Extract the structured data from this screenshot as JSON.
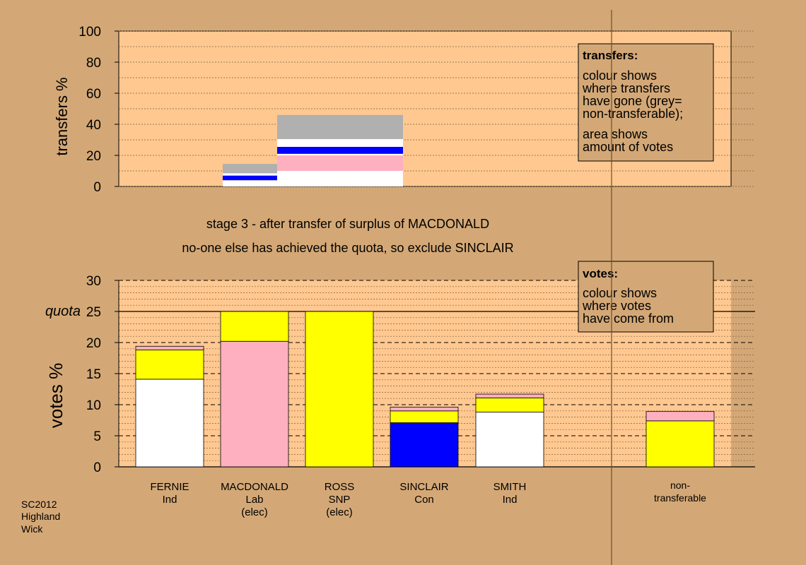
{
  "chart_data": [
    {
      "type": "bar",
      "panel": "transfers",
      "ylabel": "transfers %",
      "ylim": [
        0,
        100
      ],
      "yticks": [
        0,
        20,
        40,
        60,
        80,
        100
      ],
      "bars": [
        {
          "position": "MACDONALD",
          "segments": [
            {
              "color": "#ffffff",
              "value": 4
            },
            {
              "color": "#0000ff",
              "value": 3
            },
            {
              "color": "#ffffff",
              "value": 1.5
            },
            {
              "color": "#b0b0b0",
              "value": 6
            }
          ]
        },
        {
          "position": "ROSS",
          "segments": [
            {
              "color": "#ffffff",
              "value": 10
            },
            {
              "color": "#ffb0c0",
              "value": 10
            },
            {
              "color": "#ffffff",
              "value": 1
            },
            {
              "color": "#0000ff",
              "value": 4.5
            },
            {
              "color": "#ffffff",
              "value": 5
            },
            {
              "color": "#b0b0b0",
              "value": 15.5
            }
          ]
        }
      ],
      "legend": {
        "placement": "top-right",
        "title": "transfers:",
        "lines1": [
          "colour shows",
          "where transfers",
          "have gone (grey=",
          "non-transferable);"
        ],
        "lines2": [
          "area shows",
          "amount of votes"
        ]
      }
    },
    {
      "type": "bar",
      "panel": "votes",
      "ylabel": "votes %",
      "ylim": [
        0,
        30
      ],
      "yticks": [
        0,
        5,
        10,
        15,
        20,
        25,
        30
      ],
      "quota": 25,
      "quota_label": "quota",
      "categories": [
        {
          "name": "FERNIE",
          "party": "Ind",
          "status": ""
        },
        {
          "name": "MACDONALD",
          "party": "Lab",
          "status": "(elec)"
        },
        {
          "name": "ROSS",
          "party": "SNP",
          "status": "(elec)"
        },
        {
          "name": "SINCLAIR",
          "party": "Con",
          "status": ""
        },
        {
          "name": "SMITH",
          "party": "Ind",
          "status": ""
        },
        {
          "name": "non-",
          "party": "transferable",
          "status": ""
        }
      ],
      "bars": [
        {
          "segments": [
            {
              "color": "#ffffff",
              "value": 14.1
            },
            {
              "color": "#ffff00",
              "value": 4.7
            },
            {
              "color": "#ffb0c0",
              "value": 0.6
            }
          ]
        },
        {
          "segments": [
            {
              "color": "#ffb0c0",
              "value": 20.2
            },
            {
              "color": "#ffff00",
              "value": 4.8
            }
          ]
        },
        {
          "segments": [
            {
              "color": "#ffff00",
              "value": 25
            }
          ]
        },
        {
          "segments": [
            {
              "color": "#0000ff",
              "value": 7.1
            },
            {
              "color": "#ffff00",
              "value": 1.9
            },
            {
              "color": "#ffb0c0",
              "value": 0.6
            }
          ]
        },
        {
          "segments": [
            {
              "color": "#ffffff",
              "value": 8.8
            },
            {
              "color": "#ffff00",
              "value": 2.3
            },
            {
              "color": "#ffb0c0",
              "value": 0.6
            }
          ]
        },
        {
          "segments": [
            {
              "color": "#ffff00",
              "value": 7.4
            },
            {
              "color": "#ffb0c0",
              "value": 1.5
            }
          ]
        }
      ],
      "legend": {
        "placement": "top-right",
        "title": "votes:",
        "lines": [
          "colour shows",
          "where votes",
          "have come from"
        ]
      }
    }
  ],
  "stage_text": {
    "line1": "stage 3 - after transfer of surplus of MACDONALD",
    "line2": "no-one else has achieved the quota, so exclude SINCLAIR"
  },
  "footer": {
    "lines": [
      "SC2012",
      "Highland",
      "Wick"
    ]
  },
  "colors": {
    "background": "#d4a876",
    "plot_bg": "#ffc890",
    "white": "#ffffff",
    "yellow": "#ffff00",
    "pink": "#ffb0c0",
    "blue": "#0000ff",
    "grey": "#b0b0b0"
  }
}
